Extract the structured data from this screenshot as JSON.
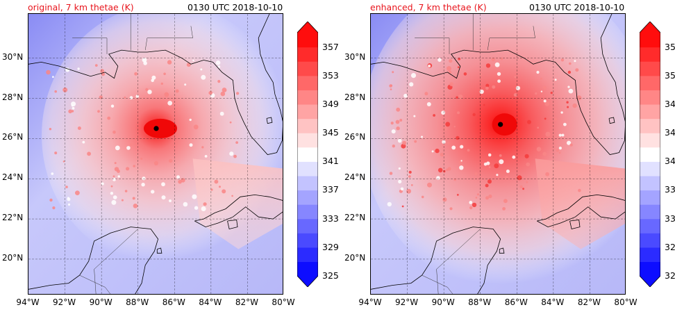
{
  "panels": [
    {
      "title": "original, 7 km thetae (K)",
      "time": "0130 UTC 2018-10-10",
      "center": {
        "lon": -87.0,
        "lat": 26.5
      },
      "intensity": "original"
    },
    {
      "title": "enhanced, 7 km thetae (K)",
      "time": "0130 UTC 2018-10-10",
      "center": {
        "lon": -86.9,
        "lat": 26.7
      },
      "intensity": "enhanced"
    }
  ],
  "map": {
    "lon_ticks": [
      "94°W",
      "92°W",
      "90°W",
      "88°W",
      "86°W",
      "84°W",
      "82°W",
      "80°W"
    ],
    "lat_ticks": [
      "20°N",
      "22°N",
      "24°N",
      "26°N",
      "28°N",
      "30°N"
    ],
    "lon_range": [
      -94,
      -80
    ],
    "lat_range": [
      18.2,
      32.2
    ]
  },
  "colorbar": {
    "label_values": [
      "357",
      "353",
      "349",
      "345",
      "341",
      "337",
      "333",
      "329",
      "325"
    ],
    "levels": [
      325,
      327,
      329,
      331,
      333,
      335,
      337,
      339,
      341,
      343,
      345,
      347,
      349,
      351,
      353,
      355,
      357,
      359
    ],
    "colors": {
      "low": "#0d0dff",
      "mid": "#ffffff",
      "high": "#ff0d0d"
    }
  },
  "icons": {
    "center_marker": "black-dot"
  }
}
